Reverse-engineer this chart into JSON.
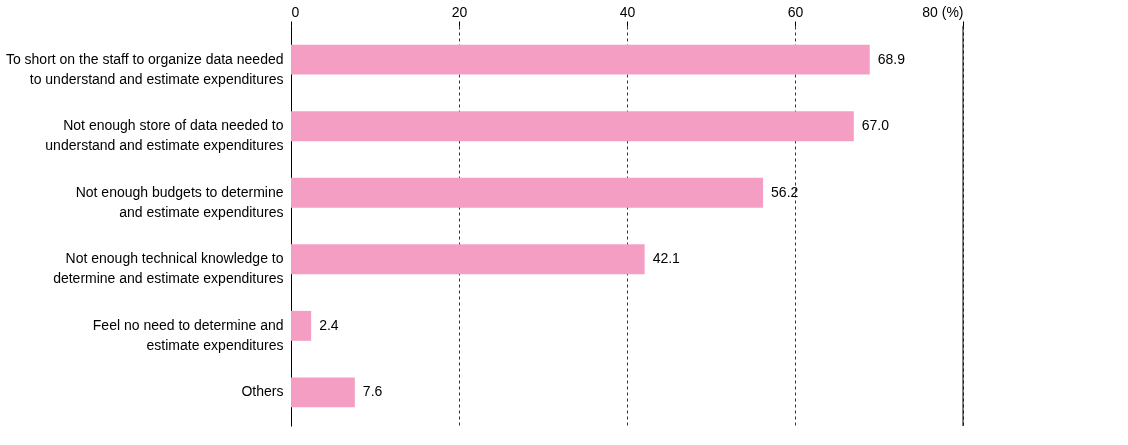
{
  "chart_data": {
    "type": "bar",
    "orientation": "horizontal",
    "categories": [
      "To short on the staff to organize data needed\nto understand and estimate expenditures",
      "Not enough store of data needed to\nunderstand and estimate expenditures",
      "Not enough budgets to determine\nand estimate expenditures",
      "Not enough technical knowledge to\ndetermine and estimate expenditures",
      "Feel no need to determine and\nestimate expenditures",
      "Others"
    ],
    "values": [
      68.9,
      67.0,
      56.2,
      42.1,
      2.4,
      7.6
    ],
    "value_labels": [
      "68.9",
      "67.0",
      "56.2",
      "42.1",
      "2.4",
      "7.6"
    ],
    "color": "#f49ec4",
    "xlim": [
      0,
      80
    ],
    "xticks": [
      0,
      20,
      40,
      60,
      {
        "value": 80,
        "label": "80 (%)"
      }
    ],
    "grid": "x"
  }
}
